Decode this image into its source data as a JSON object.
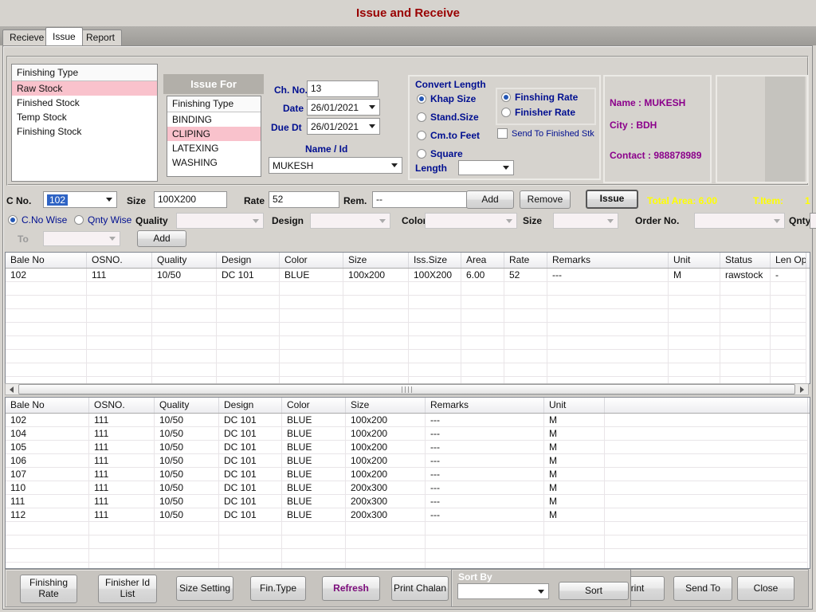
{
  "title": "Issue and Receive",
  "tabs": {
    "receive": "Recieve",
    "issue": "Issue",
    "report": "Report"
  },
  "finishing_type_list": {
    "header": "Finishing Type",
    "items": [
      "Raw Stock",
      "Finished Stock",
      "Temp Stock",
      "Finishing Stock"
    ],
    "selected": "Raw Stock"
  },
  "issue_for": {
    "title": "Issue For",
    "list_header": "Finishing Type",
    "items": [
      "BINDING",
      "CLIPING",
      "LATEXING",
      "WASHING"
    ],
    "selected": "CLIPING"
  },
  "chalan": {
    "ch_no_label": "Ch. No.",
    "ch_no": "13",
    "date_label": "Date",
    "date": "26/01/2021",
    "due_dt_label": "Due Dt",
    "due_dt": "26/01/2021",
    "name_id_label": "Name / Id",
    "name_id": "MUKESH"
  },
  "convert_length": {
    "title": "Convert Length",
    "khap": "Khap Size",
    "stand": "Stand.Size",
    "cm_to_feet": "Cm.to Feet",
    "square": "Square",
    "selected": "Khap Size",
    "length_label": "Length",
    "length_value": ""
  },
  "rate_options": {
    "finshing": "Finshing Rate",
    "finisher": "Finisher Rate",
    "selected": "Finshing Rate",
    "send_to_finished": "Send To Finished Stk",
    "checked": false
  },
  "party": {
    "name": "Name : MUKESH",
    "city": "City : BDH",
    "contact": "Contact : 988878989"
  },
  "entry": {
    "c_no_label": "C No.",
    "c_no": "102",
    "size_label": "Size",
    "size": "100X200",
    "rate_label": "Rate",
    "rate": "52",
    "rem_label": "Rem.",
    "rem": "--",
    "add": "Add",
    "remove": "Remove",
    "issue": "Issue",
    "total_area": "Total Area:  6.00",
    "t_item_label": "T.Item:",
    "t_item_value": "1"
  },
  "filters": {
    "c_no_wise": "C.No Wise",
    "qnty_wise": "Qnty Wise",
    "selected": "C.No Wise",
    "quality_label": "Quality",
    "design_label": "Design",
    "color_label": "Color",
    "size_label": "Size",
    "order_no_label": "Order  No.",
    "qnty_label": "Qnty",
    "qnty_value": "",
    "to_label": "To",
    "to_add": "Add"
  },
  "grid1": {
    "columns": [
      "Bale No",
      "OSNO.",
      "Quality",
      "Design",
      "Color",
      "Size",
      "Iss.Size",
      "Area",
      "Rate",
      "Remarks",
      "Unit",
      "Status",
      "Len Opt"
    ],
    "rows": [
      [
        "102",
        "111",
        "10/50",
        "DC 101",
        "BLUE",
        "100x200",
        "100X200",
        "6.00",
        "52",
        "---",
        "M",
        "rawstock",
        "-"
      ]
    ]
  },
  "grid2": {
    "columns": [
      "Bale No",
      "OSNO.",
      "Quality",
      "Design",
      "Color",
      "Size",
      "Remarks",
      "Unit",
      ""
    ],
    "rows": [
      [
        "102",
        "111",
        "10/50",
        "DC 101",
        "BLUE",
        "100x200",
        "---",
        "M",
        ""
      ],
      [
        "104",
        "111",
        "10/50",
        "DC 101",
        "BLUE",
        "100x200",
        "---",
        "M",
        ""
      ],
      [
        "105",
        "111",
        "10/50",
        "DC 101",
        "BLUE",
        "100x200",
        "---",
        "M",
        ""
      ],
      [
        "106",
        "111",
        "10/50",
        "DC 101",
        "BLUE",
        "100x200",
        "---",
        "M",
        ""
      ],
      [
        "107",
        "111",
        "10/50",
        "DC 101",
        "BLUE",
        "100x200",
        "---",
        "M",
        ""
      ],
      [
        "110",
        "111",
        "10/50",
        "DC 101",
        "BLUE",
        "200x300",
        "---",
        "M",
        ""
      ],
      [
        "111",
        "111",
        "10/50",
        "DC 101",
        "BLUE",
        "200x300",
        "---",
        "M",
        ""
      ],
      [
        "112",
        "111",
        "10/50",
        "DC 101",
        "BLUE",
        "200x300",
        "---",
        "M",
        ""
      ]
    ]
  },
  "toolbar": {
    "finishing_rate": "Finishing Rate",
    "finisher_id_list": "Finisher Id List",
    "size_setting": "Size Setting",
    "fin_type": "Fin.Type",
    "refresh": "Refresh",
    "print_chalan": "Print Chalan",
    "sort_by": "Sort By",
    "sort": "Sort",
    "sort_value": "",
    "print": "Print",
    "send_to": "Send To",
    "close": "Close"
  },
  "colors": {
    "accent_red": "#990000",
    "navy": "#000f90",
    "purple": "#8b008b",
    "highlight_pink": "#f9c2cc",
    "total_yellow": "#ffff00"
  }
}
